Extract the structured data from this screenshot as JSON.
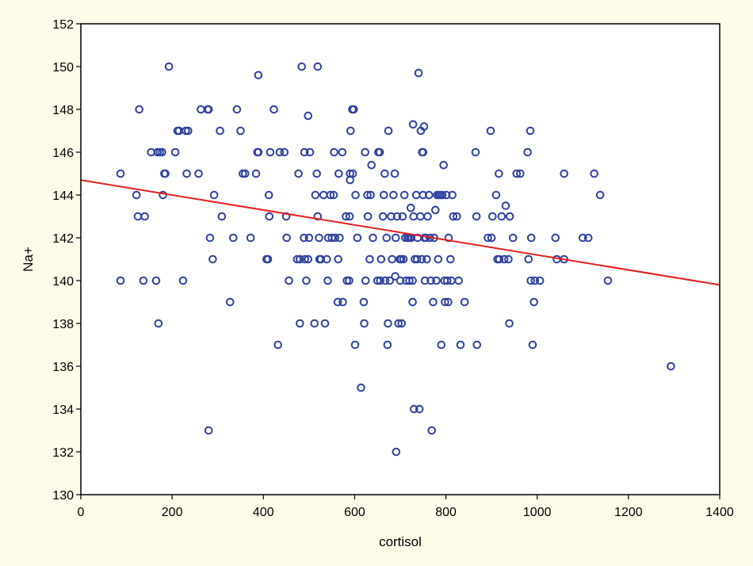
{
  "chart_data": {
    "type": "scatter",
    "title": "",
    "xlabel": "cortisol",
    "ylabel": "Na+",
    "xlim": [
      0,
      1400
    ],
    "ylim": [
      130,
      152
    ],
    "x_ticks": [
      0,
      200,
      400,
      600,
      800,
      1000,
      1200,
      1400
    ],
    "y_ticks": [
      130,
      132,
      134,
      136,
      138,
      140,
      142,
      144,
      146,
      148,
      150,
      152
    ],
    "grid": false,
    "legend": "none",
    "colors": {
      "background": "#fefbe9",
      "plot_background": "#ffffff",
      "points": "#3042a0",
      "regression": "#e51d1d",
      "axis": "#000000"
    },
    "regression_line": {
      "x": [
        0,
        1400
      ],
      "y": [
        144.7,
        139.8
      ]
    },
    "points": [
      [
        87,
        145
      ],
      [
        87,
        140
      ],
      [
        122,
        144
      ],
      [
        125,
        143
      ],
      [
        128,
        148
      ],
      [
        137,
        140
      ],
      [
        140,
        143
      ],
      [
        154,
        146
      ],
      [
        165,
        140
      ],
      [
        168,
        146
      ],
      [
        170,
        138
      ],
      [
        173,
        146
      ],
      [
        178,
        146
      ],
      [
        180,
        144
      ],
      [
        183,
        145
      ],
      [
        185,
        145
      ],
      [
        193,
        150
      ],
      [
        207,
        146
      ],
      [
        212,
        147
      ],
      [
        215,
        147
      ],
      [
        224,
        140
      ],
      [
        230,
        147
      ],
      [
        232,
        145
      ],
      [
        235,
        147
      ],
      [
        258,
        145
      ],
      [
        263,
        148
      ],
      [
        278,
        148
      ],
      [
        280,
        148
      ],
      [
        280,
        133
      ],
      [
        283,
        142
      ],
      [
        289,
        141
      ],
      [
        292,
        144
      ],
      [
        305,
        147
      ],
      [
        309,
        143
      ],
      [
        327,
        139
      ],
      [
        334,
        142
      ],
      [
        342,
        148
      ],
      [
        350,
        147
      ],
      [
        355,
        145
      ],
      [
        360,
        145
      ],
      [
        372,
        142
      ],
      [
        384,
        145
      ],
      [
        387,
        146
      ],
      [
        389,
        146
      ],
      [
        389,
        149.6
      ],
      [
        407,
        141
      ],
      [
        410,
        141
      ],
      [
        412,
        144
      ],
      [
        413,
        143
      ],
      [
        415,
        146
      ],
      [
        423,
        148
      ],
      [
        432,
        137
      ],
      [
        436,
        146
      ],
      [
        446,
        146
      ],
      [
        450,
        143
      ],
      [
        451,
        142
      ],
      [
        456,
        140
      ],
      [
        474,
        141
      ],
      [
        477,
        145
      ],
      [
        480,
        141
      ],
      [
        480,
        138
      ],
      [
        484,
        150
      ],
      [
        489,
        142
      ],
      [
        490,
        146
      ],
      [
        491,
        141
      ],
      [
        494,
        140
      ],
      [
        498,
        147.7
      ],
      [
        498,
        141
      ],
      [
        500,
        142
      ],
      [
        502,
        146
      ],
      [
        512,
        138
      ],
      [
        514,
        144
      ],
      [
        517,
        145
      ],
      [
        519,
        150
      ],
      [
        519,
        143
      ],
      [
        522,
        142
      ],
      [
        523,
        141
      ],
      [
        526,
        141
      ],
      [
        532,
        144
      ],
      [
        535,
        138
      ],
      [
        539,
        141
      ],
      [
        541,
        140
      ],
      [
        542,
        142
      ],
      [
        547,
        144
      ],
      [
        550,
        142
      ],
      [
        554,
        144
      ],
      [
        555,
        146
      ],
      [
        557,
        142
      ],
      [
        563,
        139
      ],
      [
        564,
        141
      ],
      [
        565,
        145
      ],
      [
        567,
        142
      ],
      [
        573,
        146
      ],
      [
        574,
        139
      ],
      [
        581,
        143
      ],
      [
        583,
        140
      ],
      [
        588,
        140
      ],
      [
        589,
        143
      ],
      [
        590,
        144.7
      ],
      [
        590,
        145
      ],
      [
        591,
        147
      ],
      [
        595,
        148
      ],
      [
        596,
        145
      ],
      [
        598,
        148
      ],
      [
        601,
        137
      ],
      [
        602,
        144
      ],
      [
        606,
        142
      ],
      [
        614,
        135
      ],
      [
        620,
        139
      ],
      [
        621,
        138
      ],
      [
        623,
        146
      ],
      [
        624,
        140
      ],
      [
        628,
        144
      ],
      [
        629,
        143
      ],
      [
        633,
        141
      ],
      [
        635,
        144
      ],
      [
        637,
        145.4
      ],
      [
        640,
        142
      ],
      [
        650,
        140
      ],
      [
        652,
        146
      ],
      [
        655,
        146
      ],
      [
        656,
        140
      ],
      [
        658,
        141
      ],
      [
        662,
        143
      ],
      [
        664,
        144
      ],
      [
        666,
        145
      ],
      [
        667,
        140
      ],
      [
        670,
        142
      ],
      [
        672,
        137
      ],
      [
        673,
        138
      ],
      [
        674,
        147
      ],
      [
        677,
        140
      ],
      [
        680,
        143
      ],
      [
        682,
        141
      ],
      [
        685,
        144
      ],
      [
        688,
        145
      ],
      [
        689,
        140.2
      ],
      [
        690,
        142
      ],
      [
        691,
        132
      ],
      [
        693,
        143
      ],
      [
        696,
        138
      ],
      [
        699,
        141
      ],
      [
        700,
        140
      ],
      [
        702,
        141
      ],
      [
        703,
        138
      ],
      [
        705,
        143
      ],
      [
        707,
        141
      ],
      [
        709,
        144
      ],
      [
        711,
        142
      ],
      [
        713,
        140
      ],
      [
        716,
        142
      ],
      [
        718,
        142
      ],
      [
        720,
        140
      ],
      [
        722,
        142
      ],
      [
        723,
        143.4
      ],
      [
        724,
        142
      ],
      [
        727,
        140
      ],
      [
        727,
        139
      ],
      [
        728,
        147.3
      ],
      [
        729,
        143
      ],
      [
        730,
        134
      ],
      [
        732,
        141
      ],
      [
        735,
        144
      ],
      [
        737,
        141
      ],
      [
        738,
        142
      ],
      [
        740,
        149.7
      ],
      [
        742,
        134
      ],
      [
        744,
        143
      ],
      [
        745,
        147
      ],
      [
        747,
        141
      ],
      [
        748,
        146
      ],
      [
        750,
        146
      ],
      [
        750,
        144
      ],
      [
        752,
        147.2
      ],
      [
        753,
        142
      ],
      [
        754,
        140
      ],
      [
        756,
        142
      ],
      [
        758,
        141
      ],
      [
        760,
        143
      ],
      [
        763,
        144
      ],
      [
        765,
        142
      ],
      [
        767,
        140
      ],
      [
        769,
        133
      ],
      [
        772,
        139
      ],
      [
        774,
        142
      ],
      [
        777,
        143.3
      ],
      [
        779,
        140
      ],
      [
        781,
        144
      ],
      [
        783,
        141
      ],
      [
        785,
        144
      ],
      [
        788,
        144
      ],
      [
        790,
        137
      ],
      [
        792,
        144
      ],
      [
        795,
        145.4
      ],
      [
        797,
        140
      ],
      [
        798,
        139
      ],
      [
        801,
        144
      ],
      [
        803,
        140
      ],
      [
        805,
        139
      ],
      [
        806,
        142
      ],
      [
        810,
        141
      ],
      [
        812,
        140
      ],
      [
        814,
        144
      ],
      [
        816,
        143
      ],
      [
        824,
        143
      ],
      [
        828,
        140
      ],
      [
        832,
        137
      ],
      [
        841,
        139
      ],
      [
        865,
        146
      ],
      [
        867,
        143
      ],
      [
        868,
        137
      ],
      [
        892,
        142
      ],
      [
        898,
        147
      ],
      [
        900,
        142
      ],
      [
        902,
        143
      ],
      [
        910,
        144
      ],
      [
        913,
        141
      ],
      [
        916,
        145
      ],
      [
        917,
        141
      ],
      [
        922,
        143
      ],
      [
        928,
        141
      ],
      [
        931,
        143.5
      ],
      [
        937,
        141
      ],
      [
        939,
        138
      ],
      [
        940,
        143
      ],
      [
        947,
        142
      ],
      [
        955,
        145
      ],
      [
        963,
        145
      ],
      [
        979,
        146
      ],
      [
        981,
        141
      ],
      [
        985,
        147
      ],
      [
        986,
        140
      ],
      [
        987,
        142
      ],
      [
        990,
        137
      ],
      [
        993,
        139
      ],
      [
        995,
        140
      ],
      [
        1006,
        140
      ],
      [
        1040,
        142
      ],
      [
        1043,
        141
      ],
      [
        1059,
        145
      ],
      [
        1059,
        141
      ],
      [
        1100,
        142
      ],
      [
        1112,
        142
      ],
      [
        1125,
        145
      ],
      [
        1138,
        144
      ],
      [
        1155,
        140
      ],
      [
        1293,
        136
      ]
    ]
  }
}
